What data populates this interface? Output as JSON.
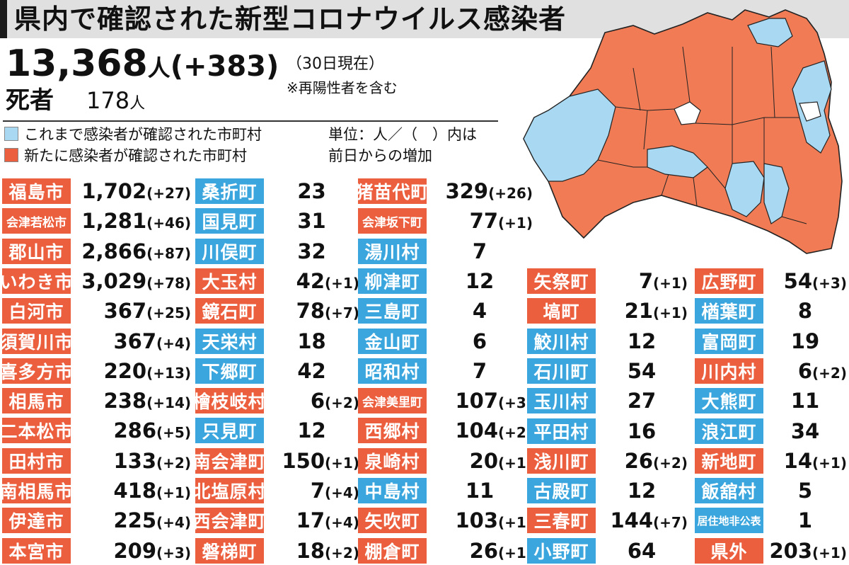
{
  "header": {
    "title": "県内で確認された新型コロナウイルス感染者"
  },
  "total": {
    "count": "13,368",
    "unit": "人",
    "delta": "(+383)",
    "as_of": "（30日現在）",
    "note": "※再陽性者を含む"
  },
  "deaths": {
    "label": "死者",
    "count": "178",
    "unit": "人"
  },
  "legend": {
    "previous": {
      "label": "これまで感染者が確認された市町村",
      "color": "#a8d8f2"
    },
    "new": {
      "label": "新たに感染者が確認された市町村",
      "color": "#ec5f3e"
    },
    "unit_note_1": "単位：人／（　）内は",
    "unit_note_2": "前日からの増加"
  },
  "colors": {
    "red": "#ec5f3e",
    "blue": "#3ba6dd",
    "map_red": "#f07b55",
    "map_blue": "#a8d8f2",
    "map_gray": "#ffffff"
  },
  "columns": [
    [
      {
        "name": "福島市",
        "value": "1,702",
        "delta": "(+27)",
        "color": "red"
      },
      {
        "name": "会津若松市",
        "value": "1,281",
        "delta": "(+46)",
        "color": "red"
      },
      {
        "name": "郡山市",
        "value": "2,866",
        "delta": "(+87)",
        "color": "red"
      },
      {
        "name": "いわき市",
        "value": "3,029",
        "delta": "(+78)",
        "color": "red"
      },
      {
        "name": "白河市",
        "value": "367",
        "delta": "(+25)",
        "color": "red"
      },
      {
        "name": "須賀川市",
        "value": "367",
        "delta": "(+4)",
        "color": "red"
      },
      {
        "name": "喜多方市",
        "value": "220",
        "delta": "(+13)",
        "color": "red"
      },
      {
        "name": "相馬市",
        "value": "238",
        "delta": "(+14)",
        "color": "red"
      },
      {
        "name": "二本松市",
        "value": "286",
        "delta": "(+5)",
        "color": "red"
      },
      {
        "name": "田村市",
        "value": "133",
        "delta": "(+2)",
        "color": "red"
      },
      {
        "name": "南相馬市",
        "value": "418",
        "delta": "(+1)",
        "color": "red"
      },
      {
        "name": "伊達市",
        "value": "225",
        "delta": "(+4)",
        "color": "red"
      },
      {
        "name": "本宮市",
        "value": "209",
        "delta": "(+3)",
        "color": "red"
      }
    ],
    [
      {
        "name": "桑折町",
        "value": "23",
        "delta": "",
        "color": "blue"
      },
      {
        "name": "国見町",
        "value": "31",
        "delta": "",
        "color": "blue"
      },
      {
        "name": "川俣町",
        "value": "32",
        "delta": "",
        "color": "blue"
      },
      {
        "name": "大玉村",
        "value": "42",
        "delta": "(+1)",
        "color": "red"
      },
      {
        "name": "鏡石町",
        "value": "78",
        "delta": "(+7)",
        "color": "red"
      },
      {
        "name": "天栄村",
        "value": "18",
        "delta": "",
        "color": "blue"
      },
      {
        "name": "下郷町",
        "value": "42",
        "delta": "",
        "color": "blue"
      },
      {
        "name": "檜枝岐村",
        "value": "6",
        "delta": "(+2)",
        "color": "red"
      },
      {
        "name": "只見町",
        "value": "12",
        "delta": "",
        "color": "blue"
      },
      {
        "name": "南会津町",
        "value": "150",
        "delta": "(+1)",
        "color": "red"
      },
      {
        "name": "北塩原村",
        "value": "7",
        "delta": "(+4)",
        "color": "red"
      },
      {
        "name": "西会津町",
        "value": "17",
        "delta": "(+4)",
        "color": "red"
      },
      {
        "name": "磐梯町",
        "value": "18",
        "delta": "(+2)",
        "color": "red"
      }
    ],
    [
      {
        "name": "猪苗代町",
        "value": "329",
        "delta": "(+26)",
        "color": "red"
      },
      {
        "name": "会津坂下町",
        "value": "77",
        "delta": "(+1)",
        "color": "red"
      },
      {
        "name": "湯川村",
        "value": "7",
        "delta": "",
        "color": "blue"
      },
      {
        "name": "柳津町",
        "value": "12",
        "delta": "",
        "color": "blue"
      },
      {
        "name": "三島町",
        "value": "4",
        "delta": "",
        "color": "blue"
      },
      {
        "name": "金山町",
        "value": "6",
        "delta": "",
        "color": "blue"
      },
      {
        "name": "昭和村",
        "value": "7",
        "delta": "",
        "color": "blue"
      },
      {
        "name": "会津美里町",
        "value": "107",
        "delta": "(+3)",
        "color": "red"
      },
      {
        "name": "西郷村",
        "value": "104",
        "delta": "(+2)",
        "color": "red"
      },
      {
        "name": "泉崎村",
        "value": "20",
        "delta": "(+1)",
        "color": "red"
      },
      {
        "name": "中島村",
        "value": "11",
        "delta": "",
        "color": "blue"
      },
      {
        "name": "矢吹町",
        "value": "103",
        "delta": "(+1)",
        "color": "red"
      },
      {
        "name": "棚倉町",
        "value": "26",
        "delta": "(+1)",
        "color": "red"
      }
    ],
    [
      {
        "name": "矢祭町",
        "value": "7",
        "delta": "(+1)",
        "color": "red"
      },
      {
        "name": "塙町",
        "value": "21",
        "delta": "(+1)",
        "color": "red"
      },
      {
        "name": "鮫川村",
        "value": "12",
        "delta": "",
        "color": "blue"
      },
      {
        "name": "石川町",
        "value": "54",
        "delta": "",
        "color": "blue"
      },
      {
        "name": "玉川村",
        "value": "27",
        "delta": "",
        "color": "blue"
      },
      {
        "name": "平田村",
        "value": "16",
        "delta": "",
        "color": "blue"
      },
      {
        "name": "浅川町",
        "value": "26",
        "delta": "(+2)",
        "color": "red"
      },
      {
        "name": "古殿町",
        "value": "12",
        "delta": "",
        "color": "blue"
      },
      {
        "name": "三春町",
        "value": "144",
        "delta": "(+7)",
        "color": "red"
      },
      {
        "name": "小野町",
        "value": "64",
        "delta": "",
        "color": "blue"
      }
    ],
    [
      {
        "name": "広野町",
        "value": "54",
        "delta": "(+3)",
        "color": "red"
      },
      {
        "name": "楢葉町",
        "value": "8",
        "delta": "",
        "color": "blue"
      },
      {
        "name": "富岡町",
        "value": "19",
        "delta": "",
        "color": "blue"
      },
      {
        "name": "川内村",
        "value": "6",
        "delta": "(+2)",
        "color": "red"
      },
      {
        "name": "大熊町",
        "value": "11",
        "delta": "",
        "color": "blue"
      },
      {
        "name": "浪江町",
        "value": "34",
        "delta": "",
        "color": "blue"
      },
      {
        "name": "新地町",
        "value": "14",
        "delta": "(+1)",
        "color": "red"
      },
      {
        "name": "飯舘村",
        "value": "5",
        "delta": "",
        "color": "blue"
      },
      {
        "name": "居住地非公表",
        "value": "1",
        "delta": "",
        "color": "blue"
      },
      {
        "name": "県外",
        "value": "203",
        "delta": "(+1)",
        "color": "red"
      }
    ]
  ]
}
